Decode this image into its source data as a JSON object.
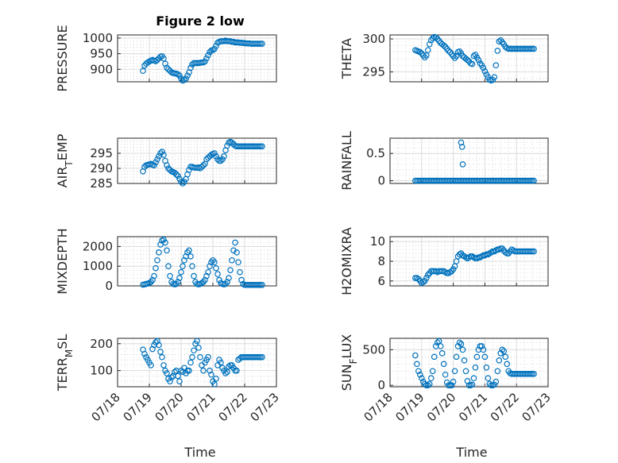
{
  "figure": {
    "title": "Figure 2 low",
    "marker_color": "#0072BD",
    "x_tick_labels": [
      "07/18",
      "07/19",
      "07/20",
      "07/21",
      "07/22",
      "07/23"
    ],
    "xlabel": "Time"
  },
  "chart_data": [
    {
      "type": "scatter",
      "ylabel": "PRESSURE",
      "ylim": [
        860,
        1010
      ],
      "yticks": [
        900,
        950,
        1000
      ],
      "grid": "on",
      "x": [
        0.8,
        0.85,
        0.9,
        0.95,
        1.0,
        1.05,
        1.1,
        1.15,
        1.2,
        1.25,
        1.3,
        1.35,
        1.4,
        1.45,
        1.5,
        1.55,
        1.6,
        1.65,
        1.7,
        1.75,
        1.8,
        1.85,
        1.9,
        1.95,
        2.0,
        2.05,
        2.1,
        2.15,
        2.2,
        2.25,
        2.3,
        2.35,
        2.4,
        2.45,
        2.5,
        2.55,
        2.6,
        2.65,
        2.7,
        2.75,
        2.8,
        2.85,
        2.9,
        2.95,
        3.0,
        3.05,
        3.1,
        3.15,
        3.2,
        3.25,
        3.3,
        3.35,
        3.4,
        3.45,
        3.5,
        3.55,
        3.6,
        3.65,
        3.7,
        3.75,
        3.8,
        3.85,
        3.9,
        3.95,
        4.0,
        4.05,
        4.1,
        4.15,
        4.2,
        4.25,
        4.3,
        4.35,
        4.4,
        4.45,
        4.5,
        4.55
      ],
      "y": [
        895,
        912,
        918,
        922,
        925,
        928,
        930,
        928,
        926,
        930,
        935,
        940,
        942,
        935,
        918,
        905,
        900,
        895,
        890,
        888,
        887,
        886,
        884,
        880,
        870,
        864,
        866,
        870,
        880,
        890,
        905,
        915,
        920,
        920,
        920,
        920,
        921,
        922,
        922,
        925,
        935,
        945,
        955,
        960,
        962,
        965,
        975,
        985,
        988,
        990,
        990,
        990,
        992,
        990,
        990,
        990,
        988,
        988,
        986,
        986,
        986,
        985,
        985,
        984,
        984,
        983,
        983,
        983,
        982,
        982,
        982,
        982,
        982,
        982,
        982,
        982
      ]
    },
    {
      "type": "scatter",
      "ylabel": "THETA",
      "ylim": [
        293.5,
        300.6
      ],
      "yticks": [
        295,
        300
      ],
      "grid": "on",
      "x": [
        0.8,
        0.85,
        0.9,
        0.95,
        1.0,
        1.05,
        1.1,
        1.15,
        1.2,
        1.25,
        1.3,
        1.35,
        1.4,
        1.45,
        1.5,
        1.55,
        1.6,
        1.65,
        1.7,
        1.75,
        1.8,
        1.85,
        1.9,
        1.95,
        2.0,
        2.05,
        2.1,
        2.15,
        2.2,
        2.25,
        2.3,
        2.35,
        2.4,
        2.45,
        2.5,
        2.55,
        2.6,
        2.65,
        2.7,
        2.75,
        2.8,
        2.85,
        2.9,
        2.95,
        3.0,
        3.05,
        3.1,
        3.15,
        3.2,
        3.25,
        3.3,
        3.35,
        3.4,
        3.45,
        3.5,
        3.55,
        3.6,
        3.65,
        3.7,
        3.75,
        3.8,
        3.85,
        3.9,
        3.95,
        4.0,
        4.05,
        4.1,
        4.15,
        4.2,
        4.25,
        4.3,
        4.35,
        4.4,
        4.45,
        4.5,
        4.55
      ],
      "y": [
        298.3,
        298.2,
        298.1,
        298.0,
        297.8,
        297.5,
        297.2,
        297.5,
        298.3,
        299.2,
        299.8,
        300.1,
        300.3,
        300.2,
        300.0,
        299.7,
        299.4,
        299.2,
        299.0,
        298.8,
        298.5,
        298.2,
        298.0,
        297.7,
        297.4,
        297.1,
        297.4,
        298.0,
        298.1,
        297.8,
        297.4,
        297.2,
        297.0,
        296.8,
        296.6,
        296.3,
        296.2,
        297.4,
        297.6,
        297.2,
        296.8,
        296.3,
        296.0,
        295.6,
        295.1,
        294.6,
        294.2,
        293.8,
        293.7,
        293.8,
        294.2,
        296.0,
        298.2,
        299.6,
        299.8,
        299.5,
        299.2,
        298.8,
        298.6,
        298.5,
        298.5,
        298.5,
        298.5,
        298.5,
        298.5,
        298.5,
        298.5,
        298.5,
        298.5,
        298.5,
        298.5,
        298.5,
        298.5,
        298.5,
        298.5,
        298.5
      ]
    },
    {
      "type": "scatter",
      "ylabel": "AIR_TEMP",
      "ylim": [
        285,
        300
      ],
      "yticks": [
        285,
        290,
        295
      ],
      "grid": "on",
      "x": [
        0.8,
        0.85,
        0.9,
        0.95,
        1.0,
        1.05,
        1.1,
        1.15,
        1.2,
        1.25,
        1.3,
        1.35,
        1.4,
        1.45,
        1.5,
        1.55,
        1.6,
        1.65,
        1.7,
        1.75,
        1.8,
        1.85,
        1.9,
        1.95,
        2.0,
        2.05,
        2.1,
        2.15,
        2.2,
        2.25,
        2.3,
        2.35,
        2.4,
        2.45,
        2.5,
        2.55,
        2.6,
        2.65,
        2.7,
        2.75,
        2.8,
        2.85,
        2.9,
        2.95,
        3.0,
        3.05,
        3.1,
        3.15,
        3.2,
        3.25,
        3.3,
        3.35,
        3.4,
        3.45,
        3.5,
        3.55,
        3.6,
        3.65,
        3.7,
        3.75,
        3.8,
        3.85,
        3.9,
        3.95,
        4.0,
        4.05,
        4.1,
        4.15,
        4.2,
        4.25,
        4.3,
        4.35,
        4.4,
        4.45,
        4.5,
        4.55
      ],
      "y": [
        289.0,
        290.5,
        291.0,
        291.2,
        291.3,
        291.5,
        291.2,
        291.0,
        292.0,
        293.0,
        294.0,
        295.0,
        295.5,
        294.5,
        292.5,
        291.0,
        290.0,
        289.5,
        289.0,
        288.8,
        288.5,
        288.0,
        287.5,
        286.5,
        285.5,
        285.0,
        285.5,
        286.5,
        288.0,
        289.5,
        290.5,
        290.5,
        290.3,
        290.2,
        290.2,
        290.3,
        290.0,
        290.5,
        291.0,
        291.5,
        293.0,
        293.5,
        294.0,
        294.5,
        294.8,
        295.0,
        294.0,
        293.0,
        292.5,
        292.5,
        293.0,
        294.0,
        296.0,
        297.5,
        298.5,
        298.8,
        298.5,
        298.0,
        297.5,
        297.3,
        297.3,
        297.3,
        297.3,
        297.3,
        297.3,
        297.3,
        297.3,
        297.3,
        297.3,
        297.3,
        297.3,
        297.3,
        297.3,
        297.3,
        297.3,
        297.3
      ]
    },
    {
      "type": "scatter",
      "ylabel": "RAINFALL",
      "ylim": [
        -0.05,
        0.78
      ],
      "yticks": [
        0,
        0.5
      ],
      "grid": "on",
      "x": [
        0.8,
        0.85,
        0.9,
        0.95,
        1.0,
        1.05,
        1.1,
        1.15,
        1.2,
        1.25,
        1.3,
        1.35,
        1.4,
        1.45,
        1.5,
        1.55,
        1.6,
        1.65,
        1.7,
        1.75,
        1.8,
        1.85,
        1.9,
        1.95,
        2.0,
        2.05,
        2.1,
        2.15,
        2.2,
        2.25,
        2.3,
        2.35,
        2.4,
        2.45,
        2.5,
        2.55,
        2.6,
        2.65,
        2.7,
        2.75,
        2.8,
        2.85,
        2.9,
        2.95,
        3.0,
        3.05,
        3.1,
        3.15,
        3.2,
        3.25,
        3.3,
        3.35,
        3.4,
        3.45,
        3.5,
        3.55,
        3.6,
        3.65,
        3.7,
        3.75,
        3.8,
        3.85,
        3.9,
        3.95,
        4.0,
        4.05,
        4.1,
        4.15,
        4.2,
        4.25,
        4.3,
        4.35,
        4.4,
        4.45,
        4.5,
        4.55,
        2.25,
        2.28,
        2.3
      ],
      "y": [
        0,
        0,
        0,
        0,
        0,
        0,
        0,
        0,
        0,
        0,
        0,
        0,
        0,
        0,
        0,
        0,
        0,
        0,
        0,
        0,
        0,
        0,
        0,
        0,
        0,
        0,
        0,
        0,
        0,
        0,
        0,
        0,
        0,
        0,
        0,
        0,
        0,
        0,
        0,
        0,
        0,
        0,
        0,
        0,
        0,
        0,
        0,
        0,
        0,
        0,
        0,
        0,
        0,
        0,
        0,
        0,
        0,
        0,
        0,
        0,
        0,
        0,
        0,
        0,
        0,
        0,
        0,
        0,
        0,
        0,
        0,
        0,
        0,
        0,
        0,
        0,
        0.7,
        0.62,
        0.3
      ]
    },
    {
      "type": "scatter",
      "ylabel": "MIXDEPTH",
      "ylim": [
        0,
        2500
      ],
      "yticks": [
        0,
        1000,
        2000
      ],
      "grid": "on",
      "x": [
        0.8,
        0.85,
        0.9,
        0.95,
        1.0,
        1.05,
        1.1,
        1.15,
        1.2,
        1.25,
        1.3,
        1.35,
        1.4,
        1.45,
        1.5,
        1.55,
        1.6,
        1.65,
        1.7,
        1.75,
        1.8,
        1.85,
        1.9,
        1.95,
        2.0,
        2.05,
        2.1,
        2.15,
        2.2,
        2.25,
        2.3,
        2.35,
        2.4,
        2.45,
        2.5,
        2.55,
        2.6,
        2.65,
        2.7,
        2.75,
        2.8,
        2.85,
        2.9,
        2.95,
        3.0,
        3.05,
        3.1,
        3.15,
        3.2,
        3.25,
        3.3,
        3.35,
        3.4,
        3.45,
        3.5,
        3.55,
        3.6,
        3.65,
        3.7,
        3.75,
        3.8,
        3.85,
        3.9,
        3.95,
        4.0,
        4.05,
        4.1,
        4.15,
        4.2,
        4.25,
        4.3,
        4.35,
        4.4,
        4.45,
        4.5,
        4.55
      ],
      "y": [
        60,
        80,
        100,
        120,
        150,
        200,
        300,
        500,
        900,
        1300,
        1700,
        2100,
        2300,
        2350,
        2200,
        1800,
        1000,
        500,
        200,
        100,
        80,
        100,
        200,
        400,
        700,
        1000,
        1300,
        1500,
        1700,
        1800,
        1500,
        1000,
        500,
        200,
        100,
        80,
        100,
        150,
        200,
        300,
        500,
        700,
        1000,
        1200,
        1300,
        1200,
        900,
        600,
        300,
        150,
        100,
        80,
        100,
        200,
        400,
        800,
        1300,
        1800,
        2200,
        1700,
        1200,
        700,
        300,
        100,
        50,
        50,
        50,
        50,
        50,
        50,
        50,
        50,
        50,
        50,
        50,
        50
      ]
    },
    {
      "type": "scatter",
      "ylabel": "H2OMIXRA",
      "ylim": [
        5.5,
        10.5
      ],
      "yticks": [
        6,
        8,
        10
      ],
      "grid": "on",
      "x": [
        0.8,
        0.85,
        0.9,
        0.95,
        1.0,
        1.05,
        1.1,
        1.15,
        1.2,
        1.25,
        1.3,
        1.35,
        1.4,
        1.45,
        1.5,
        1.55,
        1.6,
        1.65,
        1.7,
        1.75,
        1.8,
        1.85,
        1.9,
        1.95,
        2.0,
        2.05,
        2.1,
        2.15,
        2.2,
        2.25,
        2.3,
        2.35,
        2.4,
        2.45,
        2.5,
        2.55,
        2.6,
        2.65,
        2.7,
        2.75,
        2.8,
        2.85,
        2.9,
        2.95,
        3.0,
        3.05,
        3.1,
        3.15,
        3.2,
        3.25,
        3.3,
        3.35,
        3.4,
        3.45,
        3.5,
        3.55,
        3.6,
        3.65,
        3.7,
        3.75,
        3.8,
        3.85,
        3.9,
        3.95,
        4.0,
        4.05,
        4.1,
        4.15,
        4.2,
        4.25,
        4.3,
        4.35,
        4.4,
        4.45,
        4.5,
        4.55
      ],
      "y": [
        6.3,
        6.3,
        6.2,
        6.0,
        5.8,
        5.9,
        6.0,
        6.3,
        6.6,
        6.8,
        7.0,
        7.0,
        7.0,
        7.0,
        6.9,
        7.0,
        7.0,
        7.0,
        7.0,
        6.9,
        6.8,
        6.8,
        6.9,
        7.0,
        7.2,
        7.5,
        8.0,
        8.5,
        8.7,
        8.8,
        8.6,
        8.5,
        8.4,
        8.3,
        8.4,
        8.5,
        8.5,
        8.4,
        8.3,
        8.3,
        8.4,
        8.4,
        8.5,
        8.6,
        8.6,
        8.7,
        8.7,
        8.8,
        8.9,
        9.0,
        9.0,
        9.1,
        9.2,
        9.2,
        9.3,
        9.3,
        9.1,
        8.9,
        8.8,
        8.8,
        9.0,
        9.2,
        9.1,
        9.0,
        9.0,
        9.0,
        9.0,
        9.0,
        9.0,
        9.0,
        9.0,
        9.0,
        9.0,
        9.0,
        9.0,
        9.0
      ]
    },
    {
      "type": "scatter",
      "ylabel": "TERR_MSL",
      "ylim": [
        40,
        220
      ],
      "yticks": [
        100,
        200
      ],
      "grid": "on",
      "x": [
        0.8,
        0.85,
        0.9,
        0.95,
        1.0,
        1.05,
        1.1,
        1.15,
        1.2,
        1.25,
        1.3,
        1.35,
        1.4,
        1.45,
        1.5,
        1.55,
        1.6,
        1.65,
        1.7,
        1.75,
        1.8,
        1.85,
        1.9,
        1.95,
        2.0,
        2.05,
        2.1,
        2.15,
        2.2,
        2.25,
        2.3,
        2.35,
        2.4,
        2.45,
        2.5,
        2.55,
        2.6,
        2.65,
        2.7,
        2.75,
        2.8,
        2.85,
        2.9,
        2.95,
        3.0,
        3.05,
        3.1,
        3.15,
        3.2,
        3.25,
        3.3,
        3.35,
        3.4,
        3.45,
        3.5,
        3.55,
        3.6,
        3.65,
        3.7,
        3.75,
        3.8,
        3.85,
        3.9,
        3.95,
        4.0,
        4.05,
        4.1,
        4.15,
        4.2,
        4.25,
        4.3,
        4.35,
        4.4,
        4.45,
        4.5,
        4.55
      ],
      "y": [
        178,
        162,
        150,
        140,
        130,
        120,
        180,
        195,
        205,
        210,
        195,
        170,
        150,
        120,
        100,
        90,
        70,
        60,
        75,
        80,
        95,
        100,
        80,
        60,
        100,
        95,
        110,
        90,
        100,
        100,
        130,
        150,
        175,
        200,
        210,
        185,
        150,
        120,
        100,
        130,
        140,
        150,
        100,
        85,
        60,
        50,
        70,
        120,
        140,
        130,
        110,
        100,
        90,
        95,
        115,
        120,
        120,
        110,
        100,
        100,
        140,
        145,
        150,
        150,
        150,
        150,
        150,
        150,
        150,
        150,
        150,
        150,
        150,
        150,
        150,
        150
      ]
    },
    {
      "type": "scatter",
      "ylabel": "SUN_FLUX",
      "ylim": [
        -20,
        660
      ],
      "yticks": [
        0,
        500
      ],
      "grid": "on",
      "x": [
        0.8,
        0.85,
        0.9,
        0.95,
        1.0,
        1.05,
        1.1,
        1.15,
        1.2,
        1.25,
        1.3,
        1.35,
        1.4,
        1.45,
        1.5,
        1.55,
        1.6,
        1.65,
        1.7,
        1.75,
        1.8,
        1.85,
        1.9,
        1.95,
        2.0,
        2.05,
        2.1,
        2.15,
        2.2,
        2.25,
        2.3,
        2.35,
        2.4,
        2.45,
        2.5,
        2.55,
        2.6,
        2.65,
        2.7,
        2.75,
        2.8,
        2.85,
        2.9,
        2.95,
        3.0,
        3.05,
        3.1,
        3.15,
        3.2,
        3.25,
        3.3,
        3.35,
        3.4,
        3.45,
        3.5,
        3.55,
        3.6,
        3.65,
        3.7,
        3.75,
        3.8,
        3.85,
        3.9,
        3.95,
        4.0,
        4.05,
        4.1,
        4.15,
        4.2,
        4.25,
        4.3,
        4.35,
        4.4,
        4.45,
        4.5,
        4.55
      ],
      "y": [
        420,
        300,
        200,
        150,
        100,
        50,
        20,
        0,
        0,
        20,
        100,
        200,
        400,
        550,
        600,
        620,
        550,
        450,
        300,
        150,
        40,
        0,
        0,
        0,
        50,
        200,
        400,
        550,
        600,
        580,
        500,
        350,
        200,
        60,
        0,
        0,
        10,
        100,
        250,
        400,
        500,
        550,
        550,
        500,
        400,
        250,
        100,
        20,
        0,
        0,
        10,
        50,
        200,
        350,
        450,
        500,
        480,
        400,
        300,
        200,
        170,
        160,
        160,
        160,
        160,
        160,
        160,
        160,
        160,
        160,
        160,
        160,
        160,
        160,
        160,
        160
      ]
    }
  ]
}
